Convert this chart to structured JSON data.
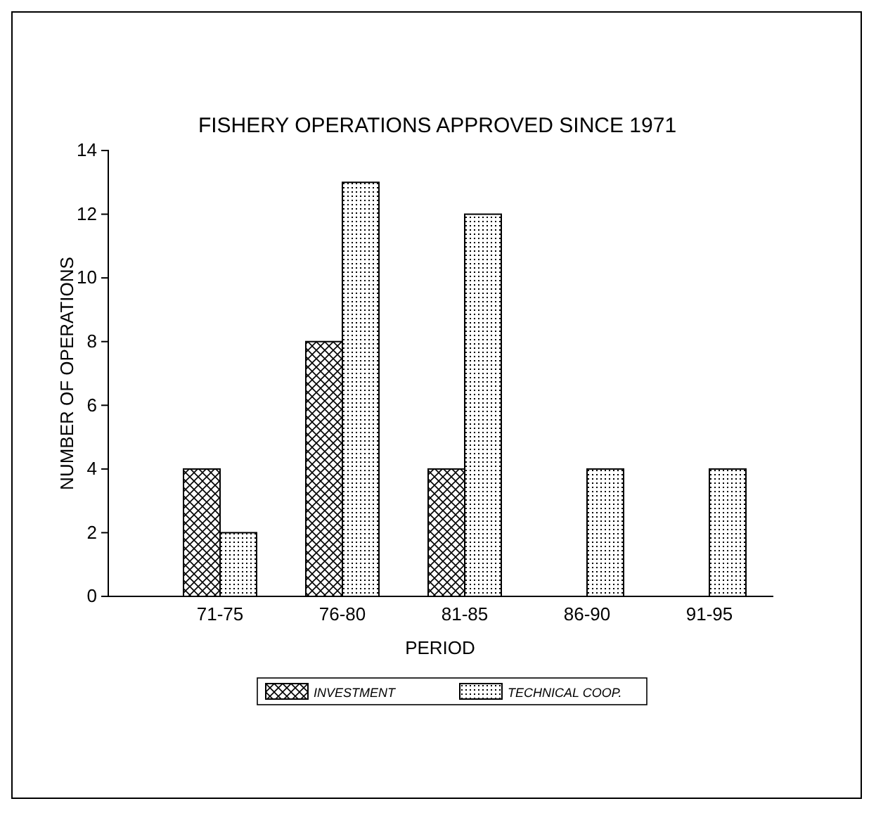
{
  "chart_data": {
    "type": "bar",
    "title": "FISHERY OPERATIONS APPROVED SINCE 1971",
    "xlabel": "PERIOD",
    "ylabel": "NUMBER OF OPERATIONS",
    "categories": [
      "71-75",
      "76-80",
      "81-85",
      "86-90",
      "91-95"
    ],
    "series": [
      {
        "name": "INVESTMENT",
        "color": "#000000",
        "values": [
          4,
          8,
          4,
          0,
          0
        ]
      },
      {
        "name": "TECHNICAL COOP.",
        "color": "#000000",
        "values": [
          2,
          13,
          12,
          4,
          4
        ]
      }
    ],
    "ylim": [
      0,
      14
    ],
    "yticks": [
      0,
      2,
      4,
      6,
      8,
      10,
      12,
      14
    ],
    "grid": false,
    "legend": "bottom"
  }
}
